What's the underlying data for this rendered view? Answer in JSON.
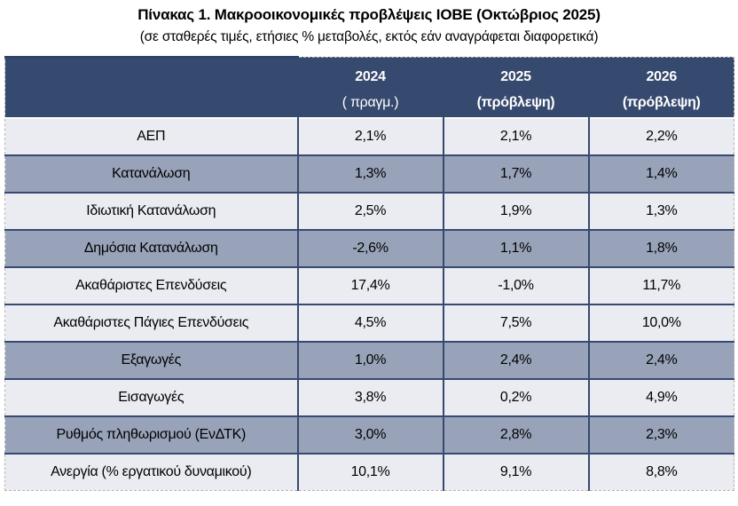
{
  "header": {
    "title": "Πίνακας 1. Μακροοικονομικές προβλέψεις ΙΟΒΕ (Οκτώβριος 2025)",
    "subtitle": "(σε σταθερές τιμές, ετήσιες % μεταβολές, εκτός εάν αναγράφεται διαφορετικά)"
  },
  "colors": {
    "header_bg": "#36496E",
    "row_light": "#EAECF2",
    "row_shaded": "#98A3B9",
    "grid_line": "#36496E",
    "outer_dashed_border": "#b3b3b3",
    "header_text": "#ffffff"
  },
  "table": {
    "columns": [
      {
        "year": "2024",
        "note": "( πραγμ.)"
      },
      {
        "year": "2025",
        "note": "(πρόβλεψη)"
      },
      {
        "year": "2026",
        "note": "(πρόβλεψη)"
      }
    ],
    "rows": [
      {
        "label": "ΑΕΠ",
        "values": [
          "2,1%",
          "2,1%",
          "2,2%"
        ],
        "shaded": false
      },
      {
        "label": "Κατανάλωση",
        "values": [
          "1,3%",
          "1,7%",
          "1,4%"
        ],
        "shaded": true
      },
      {
        "label": "Ιδιωτική Κατανάλωση",
        "values": [
          "2,5%",
          "1,9%",
          "1,3%"
        ],
        "shaded": false
      },
      {
        "label": "Δημόσια Κατανάλωση",
        "values": [
          "-2,6%",
          "1,1%",
          "1,8%"
        ],
        "shaded": true
      },
      {
        "label": "Ακαθάριστες Επενδύσεις",
        "values": [
          "17,4%",
          "-1,0%",
          "11,7%"
        ],
        "shaded": false
      },
      {
        "label": "Ακαθάριστες Πάγιες Επενδύσεις",
        "values": [
          "4,5%",
          "7,5%",
          "10,0%"
        ],
        "shaded": false
      },
      {
        "label": "Εξαγωγές",
        "values": [
          "1,0%",
          "2,4%",
          "2,4%"
        ],
        "shaded": true
      },
      {
        "label": "Εισαγωγές",
        "values": [
          "3,8%",
          "0,2%",
          "4,9%"
        ],
        "shaded": false
      },
      {
        "label": "Ρυθμός πληθωρισμού (ΕνΔΤΚ)",
        "values": [
          "3,0%",
          "2,8%",
          "2,3%"
        ],
        "shaded": true
      },
      {
        "label": "Ανεργία (% εργατικού δυναμικού)",
        "values": [
          "10,1%",
          "9,1%",
          "8,8%"
        ],
        "shaded": false
      }
    ]
  }
}
